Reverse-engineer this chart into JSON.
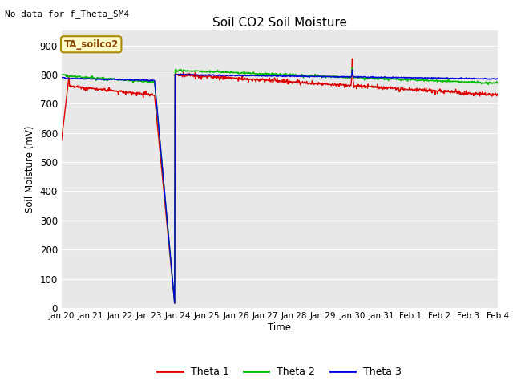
{
  "title": "Soil CO2 Soil Moisture",
  "no_data_label": "No data for f_Theta_SM4",
  "box_label": "TA_soilco2",
  "xlabel": "Time",
  "ylabel": "Soil Moisture (mV)",
  "ylim": [
    0,
    950
  ],
  "yticks": [
    0,
    100,
    200,
    300,
    400,
    500,
    600,
    700,
    800,
    900
  ],
  "fig_bg_color": "#ffffff",
  "plot_bg_color": "#e8e8e8",
  "grid_color": "#ffffff",
  "colors": {
    "theta1": "#dd0000",
    "theta2": "#00bb00",
    "theta3": "#0000dd"
  },
  "legend_entries": [
    "Theta 1",
    "Theta 2",
    "Theta 3"
  ],
  "date_labels": [
    "Jan 20",
    "Jan 21",
    "Jan 22",
    "Jan 23",
    "Jan 24",
    "Jan 25",
    "Jan 26",
    "Jan 27",
    "Jan 28",
    "Jan 29",
    "Jan 30",
    "Jan 31",
    "Feb 1",
    "Feb 2",
    "Feb 3",
    "Feb 4"
  ],
  "num_points": 1000
}
